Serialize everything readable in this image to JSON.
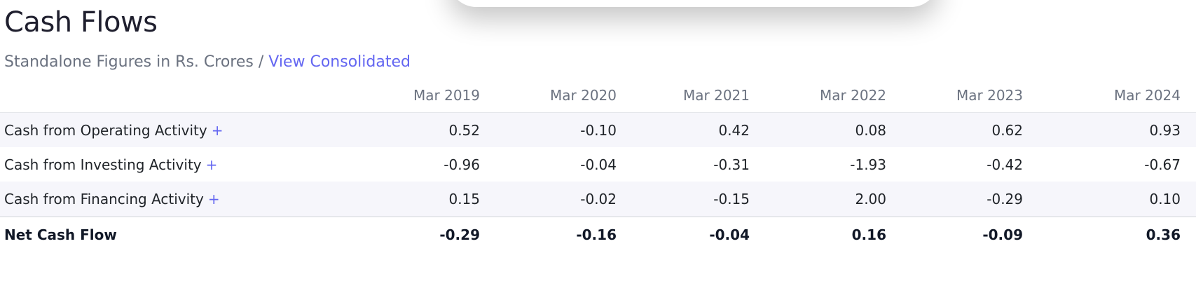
{
  "header": {
    "title": "Cash Flows",
    "subtitle_prefix": "Standalone Figures in Rs. Crores / ",
    "subtitle_link": "View Consolidated"
  },
  "table": {
    "columns": [
      "Mar 2019",
      "Mar 2020",
      "Mar 2021",
      "Mar 2022",
      "Mar 2023",
      "Mar 2024"
    ],
    "rows": [
      {
        "label": "Cash from Operating Activity",
        "expand": "+",
        "values": [
          "0.52",
          "-0.10",
          "0.42",
          "0.08",
          "0.62",
          "0.93"
        ]
      },
      {
        "label": "Cash from Investing Activity",
        "expand": "+",
        "values": [
          "-0.96",
          "-0.04",
          "-0.31",
          "-1.93",
          "-0.42",
          "-0.67"
        ]
      },
      {
        "label": "Cash from Financing Activity",
        "expand": "+",
        "values": [
          "0.15",
          "-0.02",
          "-0.15",
          "2.00",
          "-0.29",
          "0.10"
        ]
      }
    ],
    "total": {
      "label": "Net Cash Flow",
      "values": [
        "-0.29",
        "-0.16",
        "-0.04",
        "0.16",
        "-0.09",
        "0.36"
      ]
    }
  },
  "colors": {
    "accent": "#6366f1",
    "muted_text": "#6b7280",
    "row_alt_bg": "#f6f6fb"
  }
}
